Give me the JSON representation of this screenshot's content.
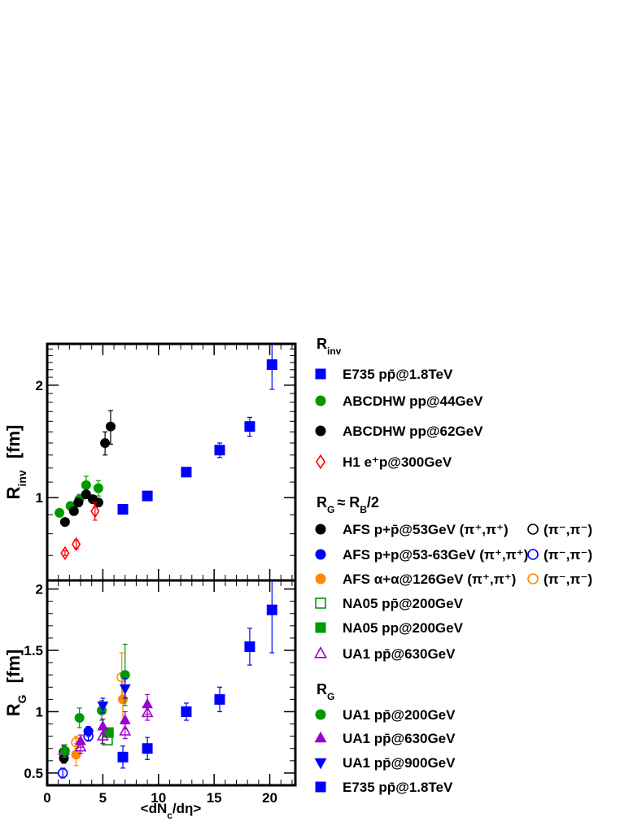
{
  "chart_data": [
    {
      "id": "top",
      "type": "scatter",
      "ylabel": "R",
      "ylabel_sub": "inv",
      "ylabel_unit": "[fm]",
      "xlim": [
        0,
        22.3
      ],
      "ylim": [
        0.6,
        2.58
      ],
      "yscale": "log",
      "yticks_major": [
        1,
        2
      ],
      "yticks_minor": [
        0.6,
        0.7,
        0.8,
        0.9,
        1.1,
        1.2,
        1.3,
        1.4,
        1.5,
        1.6,
        1.7,
        1.8,
        1.9,
        2.1,
        2.2,
        2.3,
        2.4,
        2.5
      ],
      "series": [
        {
          "name": "E735 pp̄@1.8TeV",
          "marker": "square",
          "color": "#0000ff",
          "filled": true,
          "points": [
            [
              6.8,
              0.93,
              0
            ],
            [
              9.0,
              1.01,
              0
            ],
            [
              12.5,
              1.17,
              0
            ],
            [
              15.5,
              1.34,
              0.06
            ],
            [
              18.2,
              1.55,
              0.09
            ],
            [
              20.2,
              2.27,
              0.32
            ]
          ]
        },
        {
          "name": "ABCDHW pp@44GeV",
          "marker": "circle",
          "color": "#009900",
          "filled": true,
          "points": [
            [
              1.1,
              0.91,
              0
            ],
            [
              2.1,
              0.95,
              0
            ],
            [
              2.9,
              0.99,
              0.03
            ],
            [
              3.5,
              1.08,
              0.06
            ],
            [
              4.6,
              1.06,
              0.05
            ]
          ]
        },
        {
          "name": "ABCDHW pp@62GeV",
          "marker": "circle",
          "color": "#000000",
          "filled": true,
          "points": [
            [
              1.6,
              0.86,
              0
            ],
            [
              2.4,
              0.92,
              0
            ],
            [
              2.8,
              0.97,
              0
            ],
            [
              3.5,
              1.02,
              0
            ],
            [
              4.1,
              0.99,
              0
            ],
            [
              4.6,
              0.97,
              0
            ],
            [
              5.2,
              1.4,
              0.1
            ],
            [
              5.7,
              1.55,
              0.16
            ]
          ]
        },
        {
          "name": "H1 e⁺p@300GeV",
          "marker": "diamond",
          "color": "#ff0000",
          "filled": false,
          "points": [
            [
              1.6,
              0.71,
              0.01
            ],
            [
              2.6,
              0.75,
              0.02
            ],
            [
              4.3,
              0.92,
              0.05
            ]
          ]
        }
      ]
    },
    {
      "id": "bottom",
      "type": "scatter",
      "xlabel": "<dN",
      "xlabel_sub": "c",
      "xlabel_tail": "/dη>",
      "ylabel": "R",
      "ylabel_sub": "G",
      "ylabel_unit": "[fm]",
      "xlim": [
        0,
        22.3
      ],
      "ylim": [
        0.4,
        2.07
      ],
      "xticks_major": [
        0,
        5,
        10,
        15,
        20
      ],
      "xtick_labels": [
        "0",
        "5",
        "10",
        "15",
        "20"
      ],
      "yticks_major": [
        0.5,
        1,
        1.5,
        2
      ],
      "ytick_labels": [
        "0.5",
        "1",
        "1.5",
        "2"
      ],
      "series": [
        {
          "name": "AFS p+p̄@53GeV (π⁺,π⁺)",
          "marker": "circle",
          "color": "#000000",
          "filled": true,
          "points": [
            [
              1.5,
              0.62,
              0.04
            ]
          ]
        },
        {
          "name": "(π⁻,π⁻)",
          "marker": "circle",
          "color": "#000000",
          "filled": false,
          "points": [
            [
              1.5,
              0.67,
              0.05
            ]
          ]
        },
        {
          "name": "AFS p+p@53-63GeV (π⁺,π⁺)",
          "marker": "circle",
          "color": "#0000ff",
          "filled": true,
          "points": [
            [
              3.7,
              0.84,
              0.04
            ]
          ]
        },
        {
          "name": "(π⁻,π⁻)",
          "marker": "circle",
          "color": "#0000ff",
          "filled": false,
          "points": [
            [
              1.4,
              0.5,
              0.04
            ],
            [
              3.7,
              0.8,
              0.04
            ]
          ]
        },
        {
          "name": "AFS α+α@126GeV (π⁺,π⁺)",
          "marker": "circle",
          "color": "#ff8800",
          "filled": true,
          "points": [
            [
              2.6,
              0.65,
              0.09
            ],
            [
              6.8,
              1.1,
              0.18
            ]
          ]
        },
        {
          "name": "(π⁻,π⁻)",
          "marker": "circle",
          "color": "#ff8800",
          "filled": false,
          "points": [
            [
              2.6,
              0.75,
              0.05
            ],
            [
              6.7,
              1.28,
              0.2
            ]
          ]
        },
        {
          "name": "NA05 pp̄@200GeV",
          "marker": "square",
          "color": "#009900",
          "filled": false,
          "points": [
            [
              5.4,
              0.77,
              0
            ]
          ]
        },
        {
          "name": "NA05 pp@200GeV",
          "marker": "square",
          "color": "#009900",
          "filled": true,
          "points": [
            [
              5.5,
              0.83,
              0
            ]
          ]
        },
        {
          "name": "UA1 pp̄@630GeV",
          "marker": "triangle",
          "color": "#9900cc",
          "filled": false,
          "points": [
            [
              1.5,
              0.68,
              0.05
            ],
            [
              3.0,
              0.71,
              0.05
            ],
            [
              5.0,
              0.8,
              0.06
            ],
            [
              7.0,
              0.84,
              0.06
            ],
            [
              9.0,
              0.99,
              0.06
            ]
          ]
        },
        {
          "name": "UA1 pp̄@200GeV",
          "marker": "circle",
          "color": "#009900",
          "filled": true,
          "points": [
            [
              1.6,
              0.68,
              0.05
            ],
            [
              2.9,
              0.95,
              0.08
            ],
            [
              4.9,
              1.01,
              0.08
            ],
            [
              7.0,
              1.3,
              0.25
            ]
          ]
        },
        {
          "name": "UA1 pp̄@630GeV",
          "marker": "triangle",
          "color": "#9900cc",
          "filled": true,
          "points": [
            [
              3.0,
              0.76,
              0.05
            ],
            [
              5.0,
              0.88,
              0.06
            ],
            [
              7.0,
              0.93,
              0.07
            ],
            [
              9.0,
              1.06,
              0.08
            ]
          ]
        },
        {
          "name": "UA1 pp̄@900GeV",
          "marker": "triangledown",
          "color": "#0000ff",
          "filled": true,
          "points": [
            [
              5.0,
              1.05,
              0.06
            ],
            [
              7.0,
              1.19,
              0.08
            ]
          ]
        },
        {
          "name": "E735 pp̄@1.8TeV",
          "marker": "square",
          "color": "#0000ff",
          "filled": true,
          "points": [
            [
              6.8,
              0.63,
              0.09
            ],
            [
              9.0,
              0.7,
              0.09
            ],
            [
              12.5,
              1.0,
              0.07
            ],
            [
              15.5,
              1.1,
              0.1
            ],
            [
              18.2,
              1.53,
              0.15
            ],
            [
              20.2,
              1.83,
              0.35
            ]
          ]
        }
      ]
    }
  ],
  "legend": {
    "groups": [
      {
        "header": "R",
        "header_sub": "inv",
        "header_tail": "",
        "entries": [
          {
            "marker": "square",
            "color": "#0000ff",
            "filled": true,
            "label": "E735 pp̄@1.8TeV"
          },
          {
            "marker": "circle",
            "color": "#009900",
            "filled": true,
            "label": "ABCDHW pp@44GeV"
          },
          {
            "marker": "circle",
            "color": "#000000",
            "filled": true,
            "label": "ABCDHW pp@62GeV"
          },
          {
            "marker": "diamond",
            "color": "#ff0000",
            "filled": false,
            "label": "H1 e⁺p@300GeV"
          }
        ]
      },
      {
        "header": "R",
        "header_sub": "G",
        "header_tail": "≈ R",
        "header_sub2": "B",
        "header_tail2": "/2",
        "entries": [
          {
            "marker": "circle",
            "color": "#000000",
            "filled": true,
            "label": "AFS p+p̄@53GeV (π⁺,π⁺)",
            "alt_marker": "circle",
            "alt_color": "#000000",
            "alt_label": "(π⁻,π⁻)"
          },
          {
            "marker": "circle",
            "color": "#0000ff",
            "filled": true,
            "label": "AFS p+p@53-63GeV (π⁺,π⁺)",
            "alt_marker": "circle",
            "alt_color": "#0000ff",
            "alt_label": "(π⁻,π⁻)"
          },
          {
            "marker": "circle",
            "color": "#ff8800",
            "filled": true,
            "label": "AFS α+α@126GeV (π⁺,π⁺)",
            "alt_marker": "circle",
            "alt_color": "#ff8800",
            "alt_label": "(π⁻,π⁻)"
          },
          {
            "marker": "square",
            "color": "#009900",
            "filled": false,
            "label": "NA05 pp̄@200GeV"
          },
          {
            "marker": "square",
            "color": "#009900",
            "filled": true,
            "label": "NA05 pp@200GeV"
          },
          {
            "marker": "triangle",
            "color": "#9900cc",
            "filled": false,
            "label": "UA1 pp̄@630GeV"
          }
        ]
      },
      {
        "header": "R",
        "header_sub": "G",
        "header_tail": "",
        "entries": [
          {
            "marker": "circle",
            "color": "#009900",
            "filled": true,
            "label": "UA1 pp̄@200GeV"
          },
          {
            "marker": "triangle",
            "color": "#9900cc",
            "filled": true,
            "label": "UA1 pp̄@630GeV"
          },
          {
            "marker": "triangledown",
            "color": "#0000ff",
            "filled": true,
            "label": "UA1 pp̄@900GeV"
          },
          {
            "marker": "square",
            "color": "#0000ff",
            "filled": true,
            "label": "E735 pp̄@1.8TeV"
          }
        ]
      }
    ]
  }
}
